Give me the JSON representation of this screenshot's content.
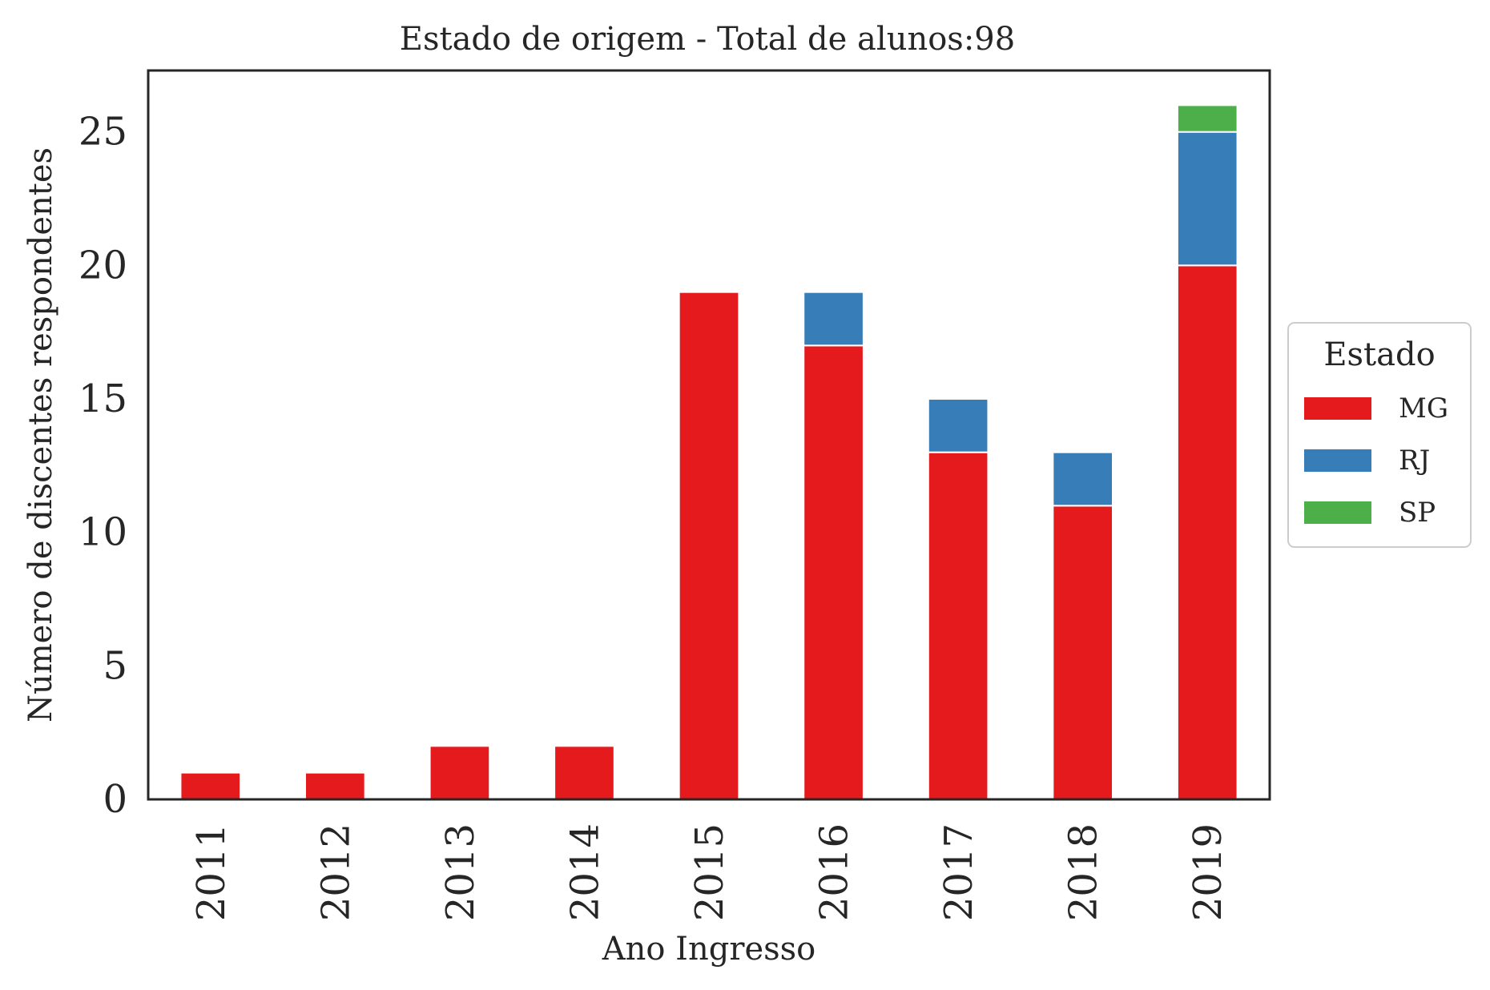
{
  "chart_data": {
    "type": "bar",
    "stacked": true,
    "title": "Estado de origem - Total de alunos:98",
    "xlabel": "Ano Ingresso",
    "ylabel": "Número de discentes respondentes",
    "categories": [
      "2011",
      "2012",
      "2013",
      "2014",
      "2015",
      "2016",
      "2017",
      "2018",
      "2019"
    ],
    "series": [
      {
        "name": "MG",
        "color": "#e41a1c",
        "values": [
          1,
          1,
          2,
          2,
          19,
          17,
          13,
          11,
          20
        ]
      },
      {
        "name": "RJ",
        "color": "#377eb8",
        "values": [
          0,
          0,
          0,
          0,
          0,
          2,
          2,
          2,
          5
        ]
      },
      {
        "name": "SP",
        "color": "#4daf4a",
        "values": [
          0,
          0,
          0,
          0,
          0,
          0,
          0,
          0,
          1
        ]
      }
    ],
    "ylim": [
      0,
      27.3
    ],
    "yticks": [
      0,
      5,
      10,
      15,
      20,
      25
    ],
    "ytick_labels": [
      "0",
      "5",
      "10",
      "15",
      "20",
      "25"
    ],
    "legend": {
      "title": "Estado",
      "placement": "center-right outside"
    },
    "grid": false
  }
}
